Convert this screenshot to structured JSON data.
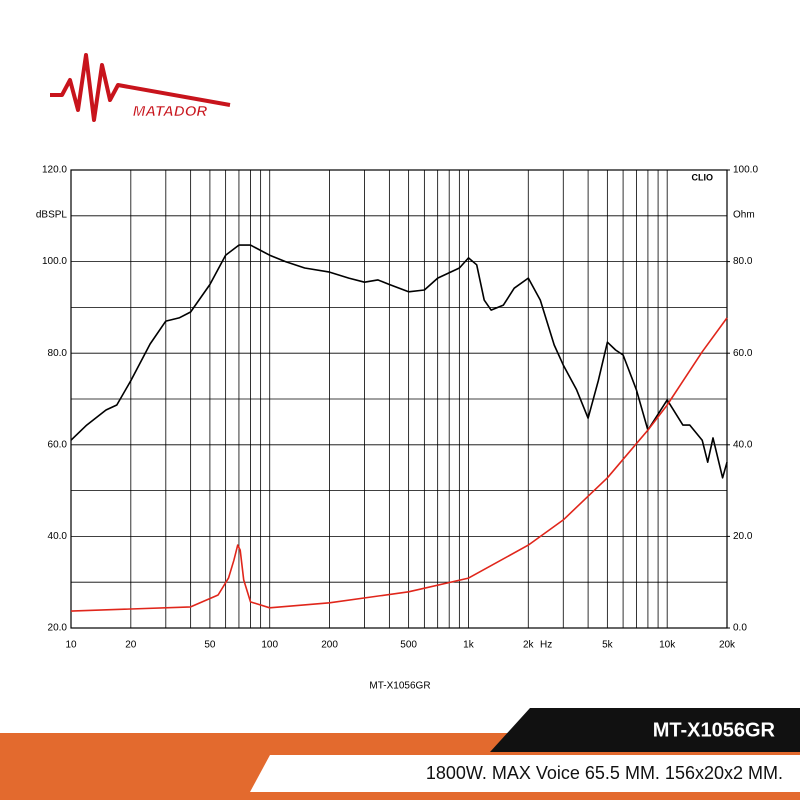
{
  "header": {
    "logo": "MATADOR"
  },
  "footer": {
    "model": "MT-X1056GR",
    "specs": "1800W. MAX Voice 65.5 MM. 156x20x2 MM."
  },
  "chart_data": {
    "type": "line",
    "xscale": "log",
    "grid": true,
    "title": "CLIO",
    "xlabel": "MT-X1056GR",
    "xunit": "Hz",
    "ylabel": "dBSPL",
    "y2label": "Ohm",
    "xlim": [
      10,
      20000
    ],
    "ylim": [
      20,
      120
    ],
    "y2lim": [
      0,
      100
    ],
    "xticks": [
      10,
      20,
      50,
      100,
      200,
      500,
      {
        "value": 1000,
        "label": "1k"
      },
      {
        "value": 2000,
        "label": "2k"
      },
      {
        "value": 5000,
        "label": "5k"
      },
      {
        "value": 10000,
        "label": "10k"
      },
      {
        "value": 20000,
        "label": "20k"
      }
    ],
    "xgrid": [
      30,
      40,
      60,
      70,
      80,
      90,
      300,
      400,
      600,
      700,
      800,
      900,
      3000,
      4000,
      6000,
      7000,
      8000,
      9000
    ],
    "yticks": [
      {
        "value": 20,
        "label": "20.0"
      },
      {
        "value": 40,
        "label": "40.0"
      },
      {
        "value": 60,
        "label": "60.0"
      },
      {
        "value": 80,
        "label": "80.0"
      },
      {
        "value": 100,
        "label": "100.0"
      },
      {
        "value": 120,
        "label": "120.0"
      }
    ],
    "ygrid": [
      30,
      50,
      70,
      90,
      110
    ],
    "y2ticks": [
      {
        "value": 0,
        "label": "0.0"
      },
      {
        "value": 20,
        "label": "20.0"
      },
      {
        "value": 40,
        "label": "40.0"
      },
      {
        "value": 60,
        "label": "60.0"
      },
      {
        "value": 80,
        "label": "80.0"
      },
      {
        "value": 100,
        "label": "100.0"
      }
    ],
    "series": [
      {
        "color": "#000000",
        "x": [
          10,
          12,
          15,
          17,
          20,
          25,
          30,
          35,
          40,
          50,
          60,
          70,
          80,
          100,
          120,
          150,
          200,
          250,
          300,
          350,
          400,
          500,
          600,
          700,
          900,
          1000,
          1100,
          1200,
          1300,
          1500,
          1700,
          2000,
          2300,
          2700,
          3000,
          3500,
          4000,
          4500,
          5000,
          5500,
          6000,
          7000,
          8000,
          10000,
          12000,
          13000,
          15000,
          16000,
          17000,
          19000,
          20000
        ],
        "values": [
          61,
          64.3,
          67.6,
          68.7,
          74,
          82,
          87,
          87.7,
          89,
          95,
          101.4,
          103.6,
          103.6,
          101.4,
          100,
          98.6,
          97.7,
          96.4,
          95.5,
          96,
          95,
          93.4,
          93.8,
          96.4,
          98.6,
          100.8,
          99.3,
          91.6,
          89.4,
          90.5,
          94.2,
          96.4,
          91.6,
          81.8,
          77.4,
          72,
          65.8,
          74,
          82.4,
          80.7,
          79.6,
          72,
          63.2,
          69.8,
          64.3,
          64.3,
          61,
          56.2,
          61.5,
          52.8,
          56.2
        ]
      },
      {
        "color": "#e0261b",
        "axis": "y2",
        "x": [
          10,
          40,
          55,
          62,
          66,
          69,
          71,
          74,
          80,
          100,
          200,
          500,
          1000,
          2000,
          3000,
          5000,
          8000,
          10000,
          15000,
          20000
        ],
        "values": [
          3.7,
          4.6,
          7.2,
          10.9,
          14.8,
          18.1,
          17,
          10.5,
          5.7,
          4.4,
          5.5,
          7.9,
          10.9,
          18.1,
          23.6,
          32.8,
          43.2,
          48.7,
          60.3,
          67.7
        ]
      }
    ]
  }
}
